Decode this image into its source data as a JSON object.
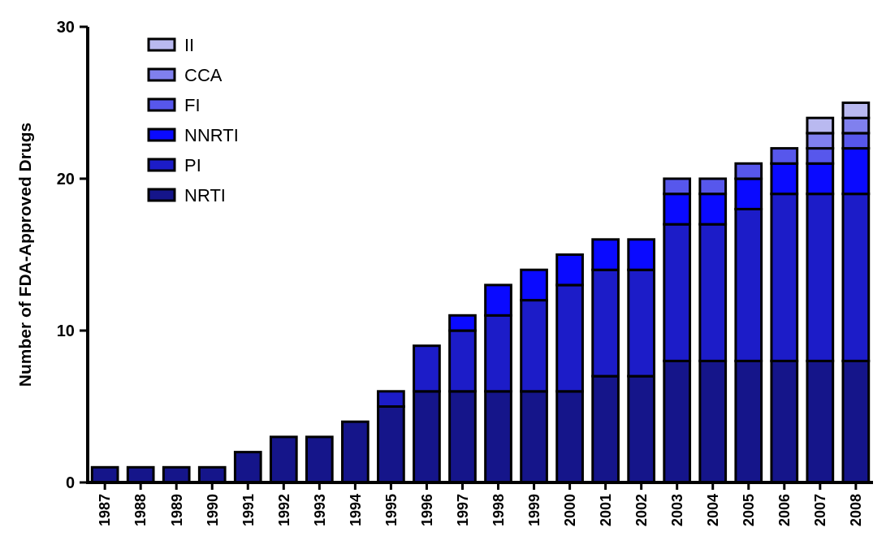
{
  "chart_data": {
    "type": "bar",
    "ylabel": "Number of FDA-Approved Drugs",
    "stacked": true,
    "legend": "top left",
    "grid": false,
    "categories": [
      "1987",
      "1988",
      "1989",
      "1990",
      "1991",
      "1992",
      "1993",
      "1994",
      "1995",
      "1996",
      "1997",
      "1998",
      "1999",
      "2000",
      "2001",
      "2002",
      "2003",
      "2004",
      "2005",
      "2006",
      "2007",
      "2008"
    ],
    "ylim": [
      0,
      30
    ],
    "yticks": [
      0,
      10,
      20,
      30
    ],
    "series": [
      {
        "name": "NRTI",
        "color": "#15158a",
        "values": [
          1,
          1,
          1,
          1,
          2,
          3,
          3,
          4,
          5,
          6,
          6,
          6,
          6,
          6,
          7,
          7,
          8,
          8,
          8,
          8,
          8,
          8
        ]
      },
      {
        "name": "PI",
        "color": "#1c1cc8",
        "values": [
          0,
          0,
          0,
          0,
          0,
          0,
          0,
          0,
          1,
          3,
          4,
          5,
          6,
          7,
          7,
          7,
          9,
          9,
          10,
          11,
          11,
          11
        ]
      },
      {
        "name": "NNRTI",
        "color": "#0a0aff",
        "values": [
          0,
          0,
          0,
          0,
          0,
          0,
          0,
          0,
          0,
          0,
          1,
          2,
          2,
          2,
          2,
          2,
          2,
          2,
          2,
          2,
          2,
          3
        ]
      },
      {
        "name": "FI",
        "color": "#5757ec",
        "values": [
          0,
          0,
          0,
          0,
          0,
          0,
          0,
          0,
          0,
          0,
          0,
          0,
          0,
          0,
          0,
          0,
          1,
          1,
          1,
          1,
          1,
          1
        ]
      },
      {
        "name": "CCA",
        "color": "#8080ee",
        "values": [
          0,
          0,
          0,
          0,
          0,
          0,
          0,
          0,
          0,
          0,
          0,
          0,
          0,
          0,
          0,
          0,
          0,
          0,
          0,
          0,
          1,
          1
        ]
      },
      {
        "name": "II",
        "color": "#b9b9f0",
        "values": [
          0,
          0,
          0,
          0,
          0,
          0,
          0,
          0,
          0,
          0,
          0,
          0,
          0,
          0,
          0,
          0,
          0,
          0,
          0,
          0,
          1,
          1
        ]
      }
    ]
  }
}
